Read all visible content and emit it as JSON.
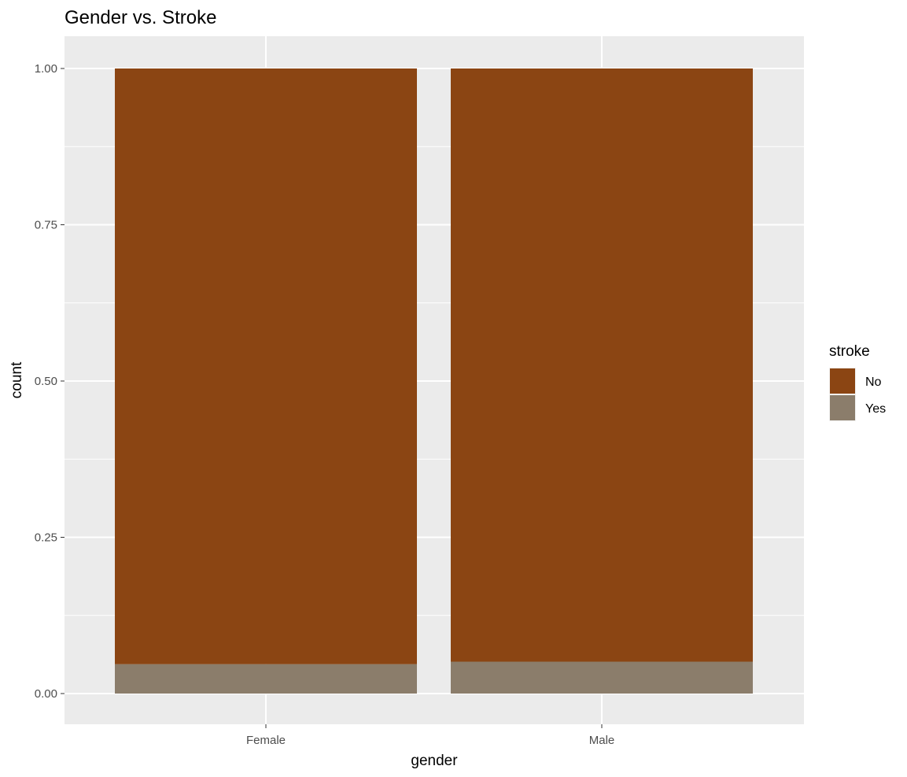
{
  "chart_data": {
    "type": "bar",
    "stacked": true,
    "title": "Gender vs. Stroke",
    "xlabel": "gender",
    "ylabel": "count",
    "categories": [
      "Female",
      "Male"
    ],
    "ylim": [
      0,
      1
    ],
    "yticks": [
      "0.00",
      "0.25",
      "0.50",
      "0.75",
      "1.00"
    ],
    "ytick_values": [
      0,
      0.25,
      0.5,
      0.75,
      1.0
    ],
    "grid": true,
    "legend": {
      "title": "stroke",
      "placement": "right",
      "entries": [
        "No",
        "Yes"
      ]
    },
    "series": [
      {
        "name": "Yes",
        "values": [
          0.047,
          0.051
        ],
        "color": "#8b7d6b"
      },
      {
        "name": "No",
        "values": [
          0.953,
          0.949
        ],
        "color": "#8b4513"
      }
    ],
    "background": "#ebebeb",
    "gridline_color": "#ffffff"
  }
}
